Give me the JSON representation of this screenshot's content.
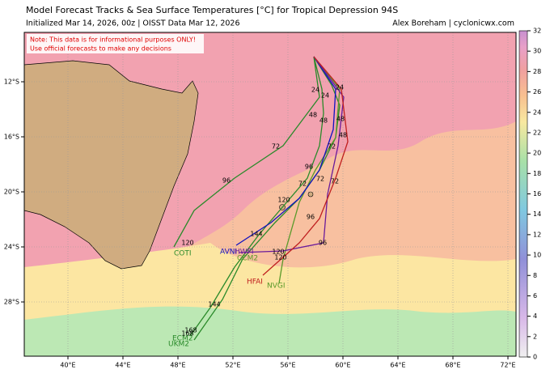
{
  "header": {
    "title": "Model Forecast Tracks & Sea Surface Temperatures [°C] for Tropical Depression 94S",
    "subtitle": "Initialized Mar 14, 2026, 00z | OISST Data Mar 12, 2026",
    "credit": "Alex Boreham | cyclonicwx.com"
  },
  "note": {
    "lines": [
      "Note: This data is for informational purposes ONLY!",
      "Use official forecasts to make any decisions"
    ]
  },
  "map": {
    "lon_labels": [
      "40°E",
      "44°E",
      "48°E",
      "52°E",
      "56°E",
      "60°E",
      "64°E",
      "68°E",
      "72°E"
    ],
    "lat_labels": [
      "12°S",
      "16°S",
      "20°S",
      "24°S",
      "28°S"
    ],
    "models": [
      "AVNI",
      "HWFI",
      "CCM2",
      "COTI",
      "HFAI",
      "NVGI",
      "ECM2",
      "UKM2"
    ],
    "hours": [
      24,
      24,
      24,
      48,
      48,
      48,
      48,
      72,
      72,
      72,
      72,
      72,
      96,
      96,
      96,
      96,
      120,
      120,
      120,
      120,
      144,
      144,
      168,
      168
    ]
  },
  "colorbar": {
    "lim": [
      0,
      32
    ],
    "ticks": [
      0,
      2,
      4,
      6,
      8,
      10,
      12,
      14,
      16,
      18,
      20,
      22,
      24,
      26,
      28,
      30,
      32
    ]
  }
}
